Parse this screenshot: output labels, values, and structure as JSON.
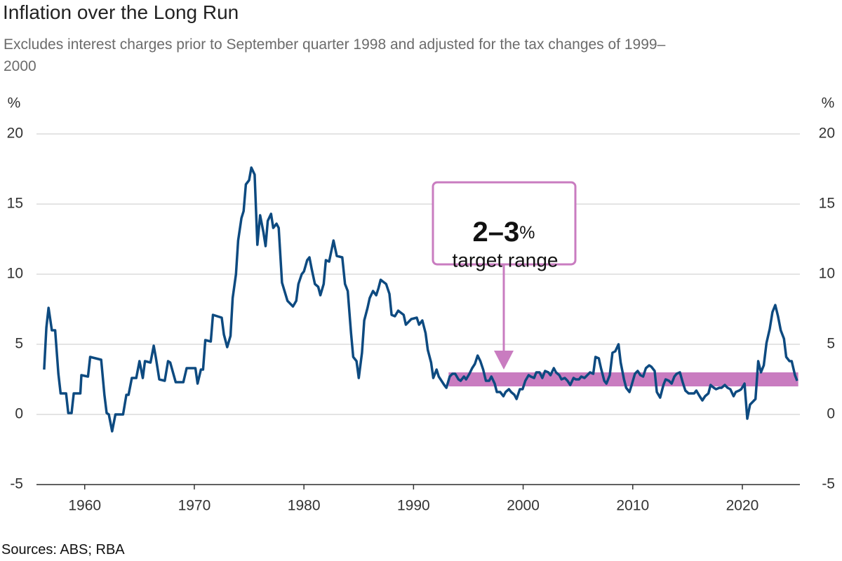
{
  "chart_data": {
    "type": "line",
    "title": "Inflation over the Long Run",
    "subtitle": "Excludes interest charges prior to September quarter 1998 and adjusted for the tax changes of 1999–2000",
    "y_unit": "%",
    "source": "Sources: ABS; RBA",
    "xlim": [
      1955.6,
      2025.25
    ],
    "ylim": [
      -5,
      20
    ],
    "xticks": [
      1960,
      1970,
      1980,
      1990,
      2000,
      2010,
      2020
    ],
    "yticks": [
      -5,
      0,
      5,
      10,
      15,
      20
    ],
    "grid": true,
    "target_band": {
      "range": [
        2,
        3
      ],
      "x": [
        1993.2,
        2025.1
      ],
      "color": "#c97cc0"
    },
    "annotation": {
      "value": "2–3",
      "unit": "%",
      "text": "target range"
    },
    "series": [
      {
        "name": "Inflation",
        "color": "#0d4a80",
        "x": [
          1956.3,
          1956.5,
          1956.7,
          1957.0,
          1957.3,
          1957.6,
          1957.8,
          1958.3,
          1958.5,
          1958.8,
          1959.0,
          1959.6,
          1959.7,
          1960.3,
          1960.5,
          1961.0,
          1961.5,
          1961.8,
          1962.0,
          1962.2,
          1962.5,
          1962.8,
          1963.5,
          1963.8,
          1964.0,
          1964.3,
          1964.7,
          1965.0,
          1965.3,
          1965.5,
          1966.0,
          1966.3,
          1966.5,
          1966.8,
          1967.3,
          1967.6,
          1967.8,
          1968.3,
          1969.0,
          1969.3,
          1970.1,
          1970.3,
          1970.6,
          1970.8,
          1971.0,
          1971.5,
          1971.7,
          1972.5,
          1972.7,
          1973.0,
          1973.3,
          1973.5,
          1973.8,
          1974.0,
          1974.3,
          1974.5,
          1974.7,
          1975.0,
          1975.2,
          1975.5,
          1975.75,
          1976.0,
          1976.3,
          1976.5,
          1976.7,
          1977.0,
          1977.2,
          1977.5,
          1977.7,
          1978.0,
          1978.5,
          1979.0,
          1979.3,
          1979.5,
          1979.8,
          1980.0,
          1980.3,
          1980.5,
          1980.7,
          1981.0,
          1981.3,
          1981.5,
          1981.8,
          1982.0,
          1982.3,
          1982.7,
          1983.0,
          1983.5,
          1983.75,
          1984.0,
          1984.3,
          1984.5,
          1984.8,
          1985.0,
          1985.3,
          1985.5,
          1985.8,
          1986.0,
          1986.3,
          1986.6,
          1986.8,
          1987.0,
          1987.5,
          1987.8,
          1988.0,
          1988.3,
          1988.6,
          1989.1,
          1989.3,
          1989.8,
          1990.3,
          1990.5,
          1990.8,
          1991.1,
          1991.3,
          1991.6,
          1991.8,
          1992.1,
          1992.3,
          1992.8,
          1993.0,
          1993.3,
          1993.55,
          1993.8,
          1994.1,
          1994.3,
          1994.6,
          1994.8,
          1995.1,
          1995.35,
          1995.6,
          1995.85,
          1996.1,
          1996.35,
          1996.6,
          1996.9,
          1997.1,
          1997.4,
          1997.6,
          1997.9,
          1998.2,
          1998.4,
          1998.7,
          1998.9,
          1999.2,
          1999.4,
          1999.7,
          1999.95,
          2000.2,
          2000.5,
          2000.7,
          2001.0,
          2001.2,
          2001.5,
          2001.75,
          2002.0,
          2002.3,
          2002.5,
          2002.8,
          2003.0,
          2003.3,
          2003.5,
          2003.8,
          2004.05,
          2004.3,
          2004.6,
          2004.8,
          2005.1,
          2005.3,
          2005.6,
          2005.85,
          2006.1,
          2006.4,
          2006.6,
          2006.9,
          2007.1,
          2007.4,
          2007.6,
          2007.9,
          2008.15,
          2008.4,
          2008.7,
          2008.9,
          2009.2,
          2009.4,
          2009.7,
          2009.9,
          2010.2,
          2010.45,
          2010.7,
          2010.95,
          2011.2,
          2011.5,
          2011.7,
          2012.0,
          2012.2,
          2012.5,
          2012.8,
          2013.0,
          2013.3,
          2013.55,
          2013.8,
          2014.0,
          2014.3,
          2014.55,
          2014.8,
          2015.1,
          2015.3,
          2015.6,
          2015.8,
          2016.1,
          2016.35,
          2016.6,
          2016.9,
          2017.1,
          2017.4,
          2017.6,
          2017.9,
          2018.1,
          2018.4,
          2018.65,
          2018.9,
          2019.2,
          2019.4,
          2019.7,
          2019.9,
          2020.2,
          2020.45,
          2020.7,
          2020.95,
          2021.2,
          2021.45,
          2021.7,
          2021.95,
          2022.2,
          2022.5,
          2022.75,
          2023.0,
          2023.25,
          2023.5,
          2023.8,
          2024.0,
          2024.3,
          2024.5,
          2024.8,
          2025.0
        ],
        "values": [
          3.2,
          6.2,
          7.6,
          6.0,
          6.0,
          2.9,
          1.5,
          1.5,
          0.1,
          0.1,
          1.5,
          1.5,
          2.8,
          2.7,
          4.1,
          4.0,
          3.9,
          1.4,
          0.1,
          0.0,
          -1.2,
          0.0,
          0.0,
          1.4,
          1.4,
          2.6,
          2.6,
          3.8,
          2.6,
          3.8,
          3.7,
          4.9,
          4.0,
          2.5,
          2.4,
          3.8,
          3.7,
          2.3,
          2.3,
          3.3,
          3.3,
          2.2,
          3.2,
          3.2,
          5.3,
          5.2,
          7.1,
          6.9,
          5.7,
          4.8,
          5.6,
          8.3,
          10.0,
          12.4,
          14.0,
          14.5,
          16.4,
          16.7,
          17.6,
          17.1,
          12.1,
          14.2,
          13.0,
          12.0,
          13.8,
          14.3,
          13.3,
          13.6,
          13.3,
          9.4,
          8.1,
          7.7,
          8.1,
          9.3,
          10.0,
          10.2,
          11.0,
          11.2,
          10.4,
          9.3,
          9.1,
          8.5,
          9.3,
          11.0,
          10.9,
          12.4,
          11.3,
          11.2,
          9.3,
          8.8,
          5.8,
          4.1,
          3.8,
          2.6,
          4.4,
          6.7,
          7.6,
          8.3,
          8.8,
          8.5,
          9.0,
          9.6,
          9.3,
          8.6,
          7.1,
          7.0,
          7.4,
          7.1,
          6.4,
          6.8,
          6.9,
          6.4,
          6.7,
          5.8,
          4.6,
          3.7,
          2.6,
          3.2,
          2.7,
          2.1,
          1.9,
          2.7,
          2.9,
          2.9,
          2.5,
          2.4,
          2.7,
          2.5,
          2.9,
          3.3,
          3.6,
          4.2,
          3.8,
          3.2,
          2.4,
          2.4,
          2.7,
          2.2,
          1.6,
          1.6,
          1.3,
          1.6,
          1.8,
          1.6,
          1.4,
          1.1,
          1.8,
          1.8,
          2.4,
          2.8,
          2.7,
          2.6,
          3.0,
          3.0,
          2.6,
          3.1,
          3.0,
          2.8,
          3.3,
          3.0,
          2.8,
          2.5,
          2.6,
          2.4,
          2.1,
          2.6,
          2.5,
          2.5,
          2.7,
          2.6,
          2.8,
          3.0,
          2.9,
          4.1,
          4.0,
          3.3,
          2.4,
          2.2,
          2.8,
          4.4,
          4.5,
          5.0,
          3.7,
          2.5,
          1.9,
          1.6,
          2.1,
          2.9,
          3.1,
          2.8,
          2.7,
          3.3,
          3.5,
          3.4,
          3.1,
          1.6,
          1.2,
          2.1,
          2.5,
          2.4,
          2.2,
          2.7,
          2.9,
          3.0,
          2.3,
          1.7,
          1.5,
          1.5,
          1.5,
          1.7,
          1.3,
          1.0,
          1.3,
          1.5,
          2.1,
          1.9,
          1.8,
          1.9,
          1.9,
          2.1,
          1.9,
          1.8,
          1.3,
          1.6,
          1.7,
          1.8,
          2.2,
          -0.3,
          0.7,
          0.9,
          1.1,
          3.8,
          3.0,
          3.5,
          5.1,
          6.1,
          7.3,
          7.8,
          7.0,
          6.0,
          5.4,
          4.1,
          3.8,
          3.8,
          2.8,
          2.4
        ]
      }
    ]
  }
}
